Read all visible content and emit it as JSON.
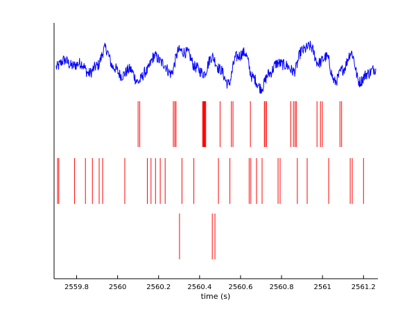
{
  "chart_data": {
    "type": "line",
    "title": "",
    "xlabel": "time (s)",
    "ylabel": "",
    "xlim": [
      2559.69,
      2561.27
    ],
    "xticks": [
      2559.8,
      2560,
      2560.2,
      2560.4,
      2560.6,
      2560.8,
      2561,
      2561.2
    ],
    "xtick_labels": [
      "2559.8",
      "2560",
      "2560.2",
      "2560.4",
      "2560.6",
      "2560.8",
      "2561",
      "2561.2"
    ],
    "grid": false,
    "legend": "none",
    "trace": {
      "color": "#0000ff",
      "description": "oscillating voltage-like signal",
      "x": [
        2559.7,
        2559.74,
        2559.78,
        2559.82,
        2559.86,
        2559.9,
        2559.94,
        2559.98,
        2560.02,
        2560.06,
        2560.1,
        2560.14,
        2560.18,
        2560.22,
        2560.26,
        2560.3,
        2560.34,
        2560.38,
        2560.42,
        2560.46,
        2560.5,
        2560.54,
        2560.58,
        2560.62,
        2560.66,
        2560.7,
        2560.74,
        2560.78,
        2560.82,
        2560.86,
        2560.9,
        2560.94,
        2560.98,
        2561.02,
        2561.06,
        2561.1,
        2561.14,
        2561.18,
        2561.22,
        2561.26
      ],
      "y": [
        0.45,
        0.62,
        0.48,
        0.55,
        0.3,
        0.48,
        0.9,
        0.45,
        0.25,
        0.4,
        0.1,
        0.35,
        0.72,
        0.55,
        0.3,
        0.85,
        0.8,
        0.45,
        0.3,
        0.7,
        0.4,
        0.05,
        0.7,
        0.8,
        0.2,
        -0.05,
        0.3,
        0.55,
        0.5,
        0.35,
        0.85,
        0.95,
        0.55,
        0.7,
        0.1,
        0.4,
        0.8,
        0.1,
        0.3,
        0.42
      ]
    },
    "spike_trains": [
      {
        "color": "#ff0000",
        "spikes": [
          2560.1,
          2560.108,
          2560.272,
          2560.279,
          2560.285,
          2560.415,
          2560.418,
          2560.421,
          2560.424,
          2560.427,
          2560.43,
          2560.5,
          2560.555,
          2560.563,
          2560.648,
          2560.716,
          2560.721,
          2560.727,
          2560.845,
          2560.858,
          2560.866,
          2560.872,
          2560.973,
          2560.99,
          2560.999,
          2561.085,
          2561.093
        ]
      },
      {
        "color": "#ff0000",
        "spikes": [
          2559.707,
          2559.713,
          2559.79,
          2559.843,
          2559.877,
          2559.91,
          2559.927,
          2560.035,
          2560.145,
          2560.163,
          2560.185,
          2560.208,
          2560.232,
          2560.314,
          2560.372,
          2560.492,
          2560.548,
          2560.642,
          2560.65,
          2560.678,
          2560.705,
          2560.783,
          2560.793,
          2560.877,
          2560.925,
          2561.03,
          2561.135,
          2561.145,
          2561.2
        ]
      },
      {
        "color": "#ff0000",
        "spikes": [
          2560.302,
          2560.462,
          2560.475
        ]
      }
    ]
  }
}
